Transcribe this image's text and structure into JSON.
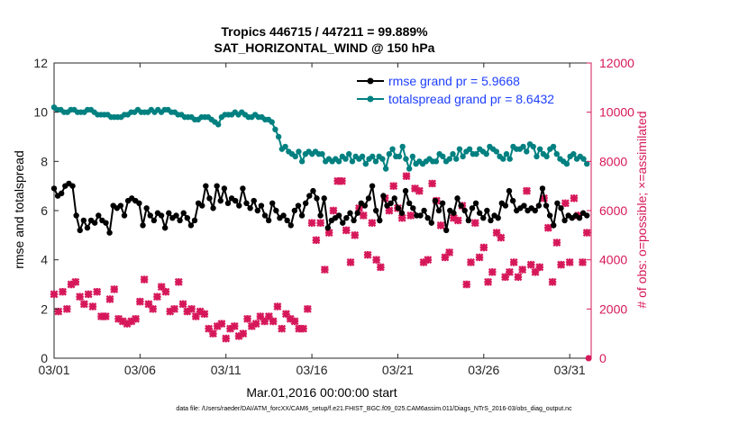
{
  "chart_data": {
    "type": "line",
    "title": "Tropics 446715 / 447211 = 99.889%",
    "subtitle": "SAT_HORIZONTAL_WIND @ 150 hPa",
    "xlabel": "Mar.01,2016 00:00:00 start",
    "ylabel": "rmse and totalspread",
    "y2label": "# of obs: o=possible; ×=assimilated",
    "x_ticks": [
      "03/01",
      "03/06",
      "03/11",
      "03/16",
      "03/21",
      "03/26",
      "03/31"
    ],
    "x_tick_days": [
      0,
      5,
      10,
      15,
      20,
      25,
      30
    ],
    "xlim": [
      0,
      31.25
    ],
    "ylim": [
      0,
      12
    ],
    "y_ticks": [
      "0",
      "2",
      "4",
      "6",
      "8",
      "10",
      "12"
    ],
    "y2lim": [
      0,
      12000
    ],
    "y2_ticks": [
      "0",
      "2000",
      "4000",
      "6000",
      "8000",
      "10000",
      "12000"
    ],
    "legend_position": "top-right",
    "colors": {
      "rmse": "#000000",
      "totalspread": "#008080",
      "obs": "#d6185a",
      "right_axis": "#d6185a"
    },
    "series": [
      {
        "name": "rmse grand pr = 5.9668",
        "axis": "left",
        "marker": "circle",
        "values": [
          6.9,
          6.6,
          6.7,
          7.0,
          7.1,
          7.0,
          5.8,
          5.2,
          5.6,
          5.3,
          5.6,
          5.5,
          5.8,
          5.6,
          5.5,
          5.1,
          6.2,
          6.1,
          6.2,
          5.8,
          6.4,
          6.5,
          6.4,
          6.3,
          5.4,
          6.1,
          5.8,
          5.6,
          5.9,
          5.8,
          5.3,
          5.9,
          5.7,
          5.8,
          5.6,
          5.9,
          5.7,
          5.4,
          5.6,
          6.3,
          6.2,
          7.0,
          6.5,
          6.1,
          7.0,
          6.4,
          6.9,
          6.3,
          6.5,
          6.4,
          6.2,
          6.9,
          6.3,
          6.1,
          6.4,
          6.0,
          6.2,
          5.8,
          5.6,
          6.3,
          6.0,
          5.7,
          5.8,
          5.6,
          5.4,
          6.0,
          6.2,
          5.8,
          6.3,
          6.6,
          6.8,
          6.5,
          5.8,
          6.5,
          5.3,
          5.6,
          5.7,
          5.8,
          5.5,
          5.7,
          5.9,
          5.6,
          5.9,
          6.3,
          6.2,
          6.5,
          7.0,
          6.0,
          5.6,
          6.6,
          6.2,
          6.3,
          6.5,
          6.1,
          5.9,
          6.8,
          6.3,
          6.1,
          5.8,
          5.8,
          6.0,
          5.7,
          5.5,
          6.4,
          6.0,
          6.3,
          5.2,
          6.0,
          5.9,
          6.5,
          6.2,
          6.0,
          5.6,
          6.1,
          6.3,
          5.9,
          5.7,
          6.0,
          5.6,
          5.8,
          5.7,
          6.3,
          6.2,
          6.8,
          6.4,
          6.0,
          6.1,
          6.2,
          6.0,
          6.1,
          6.0,
          6.2,
          6.9,
          6.2,
          5.8,
          5.4,
          6.3,
          6.1,
          5.6,
          5.8,
          5.7,
          5.8,
          5.7,
          5.9,
          5.8
        ]
      },
      {
        "name": "totalspread grand pr = 8.6432",
        "axis": "left",
        "marker": "circle",
        "values": [
          10.2,
          10.1,
          10.1,
          10.0,
          10.0,
          10.1,
          10.1,
          10.0,
          10.0,
          10.0,
          10.1,
          10.1,
          10.0,
          9.9,
          9.9,
          9.9,
          9.9,
          9.8,
          9.8,
          9.8,
          9.8,
          9.9,
          9.9,
          10.0,
          10.0,
          10.1,
          10.0,
          10.0,
          10.0,
          10.1,
          10.0,
          10.1,
          10.0,
          10.1,
          10.1,
          10.0,
          10.0,
          9.9,
          9.9,
          9.8,
          9.8,
          9.8,
          9.7,
          9.7,
          9.8,
          9.8,
          9.8,
          9.7,
          9.6,
          9.5,
          9.8,
          9.9,
          9.9,
          9.9,
          10.0,
          9.9,
          10.0,
          9.9,
          9.8,
          9.8,
          9.9,
          9.8,
          9.8,
          9.7,
          9.7,
          9.6,
          9.3,
          9.0,
          8.5,
          8.6,
          8.4,
          8.3,
          8.2,
          8.4,
          8.0,
          8.3,
          8.4,
          8.3,
          8.4,
          8.3,
          8.3,
          8.0,
          8.1,
          8.0,
          8.1,
          8.0,
          8.2,
          8.1,
          8.3,
          8.0,
          8.2,
          8.1,
          8.2,
          7.9,
          8.1,
          8.2,
          8.0,
          8.2,
          8.1,
          7.7,
          8.3,
          8.5,
          8.2,
          8.2,
          8.6,
          8.1,
          7.7,
          8.2,
          7.9,
          8.0,
          7.9,
          8.0,
          8.1,
          8.0,
          8.0,
          8.3,
          8.2,
          8.0,
          8.1,
          8.3,
          8.1,
          8.5,
          8.2,
          8.4,
          8.5,
          8.3,
          8.3,
          8.5,
          8.4,
          8.3,
          8.6,
          8.5,
          8.4,
          8.2,
          8.1,
          8.3,
          8.1,
          8.6,
          8.5,
          8.5,
          8.6,
          8.4,
          8.7,
          8.6,
          8.2,
          8.5,
          8.3,
          8.2,
          8.5,
          8.6,
          8.3,
          8.1,
          8.0,
          7.9,
          8.2,
          8.3,
          8.1,
          8.2,
          8.1,
          7.9
        ]
      },
      {
        "name": "# of obs assimilated",
        "axis": "right",
        "marker": "x",
        "x": [
          0,
          0.25,
          0.5,
          0.75,
          1.0,
          1.25,
          1.5,
          1.75,
          2.0,
          2.25,
          2.5,
          2.75,
          3.0,
          3.25,
          3.5,
          3.75,
          4.0,
          4.25,
          4.5,
          4.75,
          5.0,
          5.25,
          5.5,
          5.75,
          6.0,
          6.25,
          6.5,
          6.75,
          7.0,
          7.25,
          7.5,
          7.75,
          8.0,
          8.25,
          8.5,
          8.75,
          9.0,
          9.25,
          9.5,
          9.75,
          10.0,
          10.25,
          10.5,
          10.75,
          11.0,
          11.25,
          11.5,
          11.75,
          12.0,
          12.25,
          12.5,
          12.75,
          13.0,
          13.25,
          13.5,
          13.75,
          14.0,
          14.25,
          14.5,
          14.75,
          15.0,
          15.25,
          15.5,
          15.75,
          16.0,
          16.25,
          16.5,
          16.75,
          17.0,
          17.25,
          17.5,
          17.75,
          18.0,
          18.25,
          18.5,
          18.75,
          19.0,
          19.25,
          19.5,
          19.75,
          20.0,
          20.25,
          20.5,
          20.75,
          21.0,
          21.25,
          21.5,
          21.75,
          22.0,
          22.25,
          22.5,
          22.75,
          23.0,
          23.25,
          23.5,
          23.75,
          24.0,
          24.25,
          24.5,
          24.75,
          25.0,
          25.25,
          25.5,
          25.75,
          26.0,
          26.25,
          26.5,
          26.75,
          27.0,
          27.25,
          27.5,
          27.75,
          28.0,
          28.25,
          28.5,
          28.75,
          29.0,
          29.25,
          29.5,
          29.75,
          30.0,
          30.25,
          30.5,
          30.75,
          31.0
        ],
        "values": [
          2600,
          1900,
          2700,
          2000,
          3000,
          3100,
          2500,
          2200,
          2600,
          2100,
          2700,
          1700,
          1700,
          2400,
          2800,
          1600,
          1500,
          1400,
          1500,
          1600,
          2300,
          3200,
          2200,
          2000,
          2500,
          2900,
          2700,
          1900,
          2000,
          3100,
          2200,
          1900,
          2000,
          1700,
          1900,
          1800,
          1200,
          1000,
          1300,
          1400,
          800,
          1200,
          1300,
          900,
          1000,
          1600,
          1300,
          1400,
          1700,
          1500,
          1700,
          1500,
          2100,
          1200,
          1800,
          1600,
          1500,
          1200,
          1200,
          2000,
          5500,
          4800,
          5500,
          3600,
          5100,
          6000,
          7200,
          7200,
          5200,
          3900,
          5000,
          6100,
          5800,
          4200,
          5500,
          4000,
          3700,
          6500,
          6000,
          7000,
          6100,
          5700,
          7400,
          5800,
          6900,
          6800,
          3900,
          4000,
          7100,
          6400,
          5400,
          4100,
          4300,
          5700,
          5600,
          6200,
          3000,
          3900,
          5500,
          4100,
          4500,
          3100,
          3500,
          5100,
          4900,
          3300,
          3500,
          3900,
          3300,
          3600,
          6800,
          3800,
          3500,
          3700,
          6500,
          5300,
          3100,
          4700,
          3800,
          6300,
          3900,
          6500,
          5800,
          3900,
          5100
        ]
      },
      {
        "name": "# of obs possible",
        "axis": "right",
        "marker": "o",
        "x": [
          31.1
        ],
        "values": [
          0
        ]
      }
    ],
    "footnote": "data file: /Users/raeder/DAI/ATM_forcXX/CAM6_setup/f.e21.FHIST_BGC.f09_025.CAM6assim.011/Diags_NTrS_2016-03/obs_diag_output.nc"
  }
}
